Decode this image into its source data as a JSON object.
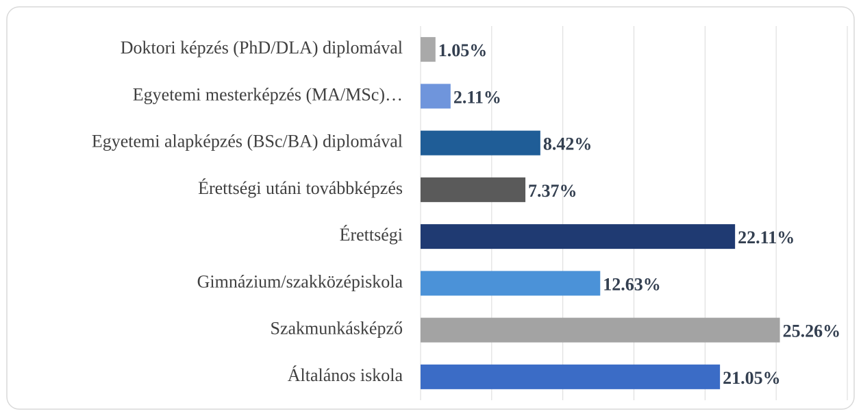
{
  "chart_data": {
    "type": "bar",
    "orientation": "horizontal",
    "categories": [
      "Doktori képzés (PhD/DLA) diplomával",
      "Egyetemi mesterképzés (MA/MSc)…",
      "Egyetemi alapképzés (BSc/BA) diplomával",
      "Érettségi utáni továbbképzés",
      "Érettségi",
      "Gimnázium/szakközépiskola",
      "Szakmunkásképző",
      "Általános iskola"
    ],
    "values": [
      1.05,
      2.11,
      8.42,
      7.37,
      22.11,
      12.63,
      25.26,
      21.05
    ],
    "value_labels": [
      "1.05%",
      "2.11%",
      "8.42%",
      "7.37%",
      "22.11%",
      "12.63%",
      "25.26%",
      "21.05%"
    ],
    "colors": [
      "#a9a9a9",
      "#6f95dc",
      "#1f5d97",
      "#5a5a5a",
      "#1f3a72",
      "#4b92d8",
      "#a3a3a3",
      "#3b6cc6"
    ],
    "xlim": [
      0,
      30
    ],
    "xticks": [
      0,
      5,
      10,
      15,
      20,
      25,
      30
    ],
    "grid": true
  }
}
